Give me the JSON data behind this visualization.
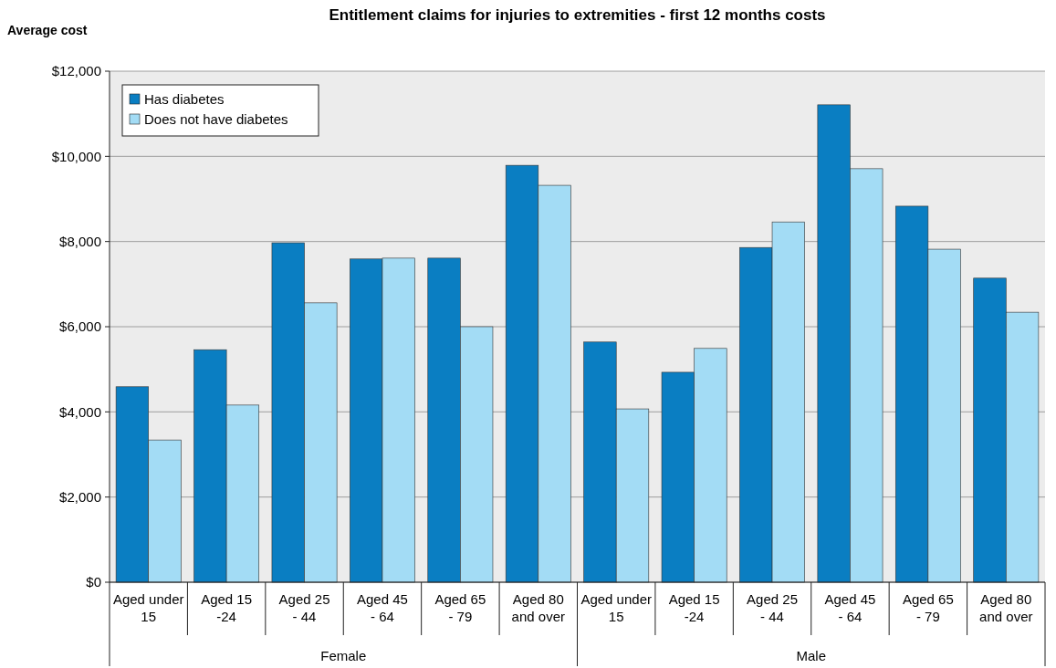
{
  "chart_data": {
    "type": "bar",
    "title": "Entitlement claims for injuries to extremities - first 12 months costs",
    "ylabel": "Average cost",
    "categories": [
      "Aged under 15",
      "Aged 15 -24",
      "Aged 25 - 44",
      "Aged 45 - 64",
      "Aged 65 - 79",
      "Aged 80 and over",
      "Aged under 15",
      "Aged 15 -24",
      "Aged 25 - 44",
      "Aged 45 - 64",
      "Aged 65 - 79",
      "Aged 80 and over"
    ],
    "series": [
      {
        "name": "Has diabetes",
        "color": "#0a7ec2",
        "values": [
          4590,
          5460,
          7970,
          7590,
          7610,
          9790,
          5640,
          4930,
          7860,
          11210,
          8830,
          7140
        ]
      },
      {
        "name": "Does not have diabetes",
        "color": "#a3dcf5",
        "values": [
          3340,
          4160,
          6560,
          7610,
          6000,
          9320,
          4070,
          5490,
          8460,
          9710,
          7820,
          6340
        ]
      }
    ],
    "annotations": [
      "Female",
      "Male"
    ],
    "ylim": [
      0,
      12000
    ],
    "yticks": [
      {
        "value": 0,
        "label": "$0"
      },
      {
        "value": 2000,
        "label": "$2,000"
      },
      {
        "value": 4000,
        "label": "$4,000"
      },
      {
        "value": 6000,
        "label": "$6,000"
      },
      {
        "value": 8000,
        "label": "$8,000"
      },
      {
        "value": 10000,
        "label": "$10,000"
      },
      {
        "value": 12000,
        "label": "$12,000"
      }
    ],
    "grid": "y",
    "legend": "top left"
  }
}
